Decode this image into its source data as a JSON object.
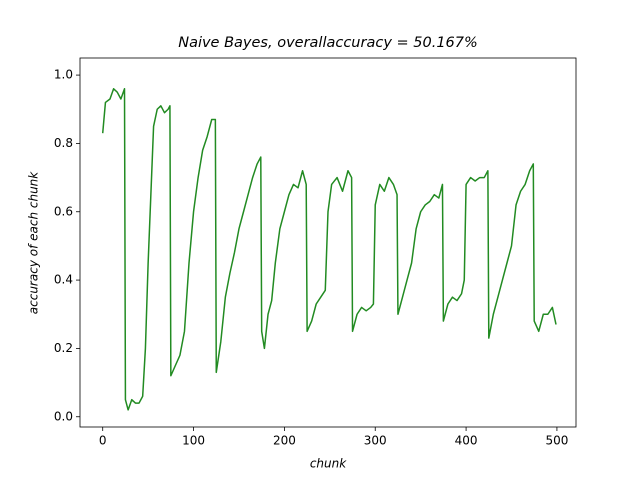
{
  "chart_data": {
    "type": "line",
    "title": "Naive Bayes, overallaccuracy = 50.167%",
    "xlabel": "chunk",
    "ylabel": "accuracy of each chunk",
    "x": [
      0,
      3,
      8,
      12,
      16,
      20,
      24,
      25,
      28,
      32,
      36,
      40,
      44,
      47,
      50,
      53,
      56,
      60,
      64,
      68,
      72,
      74,
      75,
      80,
      85,
      90,
      95,
      100,
      105,
      110,
      115,
      120,
      124,
      125,
      130,
      135,
      140,
      145,
      150,
      155,
      160,
      165,
      170,
      174,
      175,
      178,
      182,
      186,
      190,
      195,
      200,
      205,
      210,
      215,
      220,
      224,
      225,
      230,
      235,
      240,
      245,
      248,
      252,
      258,
      264,
      270,
      274,
      275,
      280,
      285,
      290,
      295,
      298,
      300,
      305,
      310,
      315,
      320,
      324,
      325,
      330,
      335,
      340,
      345,
      350,
      355,
      360,
      365,
      370,
      374,
      375,
      380,
      385,
      390,
      395,
      398,
      400,
      405,
      410,
      415,
      420,
      424,
      425,
      430,
      435,
      440,
      445,
      450,
      455,
      460,
      465,
      470,
      474,
      475,
      480,
      485,
      490,
      495,
      499
    ],
    "series": [
      {
        "name": "accuracy",
        "color": "#228b22",
        "values": [
          0.83,
          0.92,
          0.93,
          0.96,
          0.95,
          0.93,
          0.96,
          0.05,
          0.02,
          0.05,
          0.04,
          0.04,
          0.06,
          0.2,
          0.45,
          0.65,
          0.85,
          0.9,
          0.91,
          0.89,
          0.9,
          0.91,
          0.12,
          0.15,
          0.18,
          0.25,
          0.45,
          0.6,
          0.7,
          0.78,
          0.82,
          0.87,
          0.87,
          0.13,
          0.22,
          0.35,
          0.42,
          0.48,
          0.55,
          0.6,
          0.65,
          0.7,
          0.74,
          0.76,
          0.25,
          0.2,
          0.3,
          0.34,
          0.45,
          0.55,
          0.6,
          0.65,
          0.68,
          0.67,
          0.72,
          0.68,
          0.25,
          0.28,
          0.33,
          0.35,
          0.37,
          0.6,
          0.68,
          0.7,
          0.66,
          0.72,
          0.7,
          0.25,
          0.3,
          0.32,
          0.31,
          0.32,
          0.33,
          0.62,
          0.68,
          0.66,
          0.7,
          0.68,
          0.65,
          0.3,
          0.35,
          0.4,
          0.45,
          0.55,
          0.6,
          0.62,
          0.63,
          0.65,
          0.64,
          0.68,
          0.28,
          0.33,
          0.35,
          0.34,
          0.36,
          0.4,
          0.68,
          0.7,
          0.69,
          0.7,
          0.7,
          0.72,
          0.23,
          0.3,
          0.35,
          0.4,
          0.45,
          0.5,
          0.62,
          0.66,
          0.68,
          0.72,
          0.74,
          0.28,
          0.25,
          0.3,
          0.3,
          0.32,
          0.27
        ]
      }
    ],
    "xlim": [
      -25,
      521
    ],
    "ylim": [
      -0.03,
      1.05
    ],
    "xticks": [
      0,
      100,
      200,
      300,
      400,
      500
    ],
    "yticks": [
      {
        "value": 0,
        "label": "0.0"
      },
      0.2,
      0.4,
      0.6,
      0.8,
      {
        "value": 1,
        "label": "1.0"
      }
    ]
  }
}
